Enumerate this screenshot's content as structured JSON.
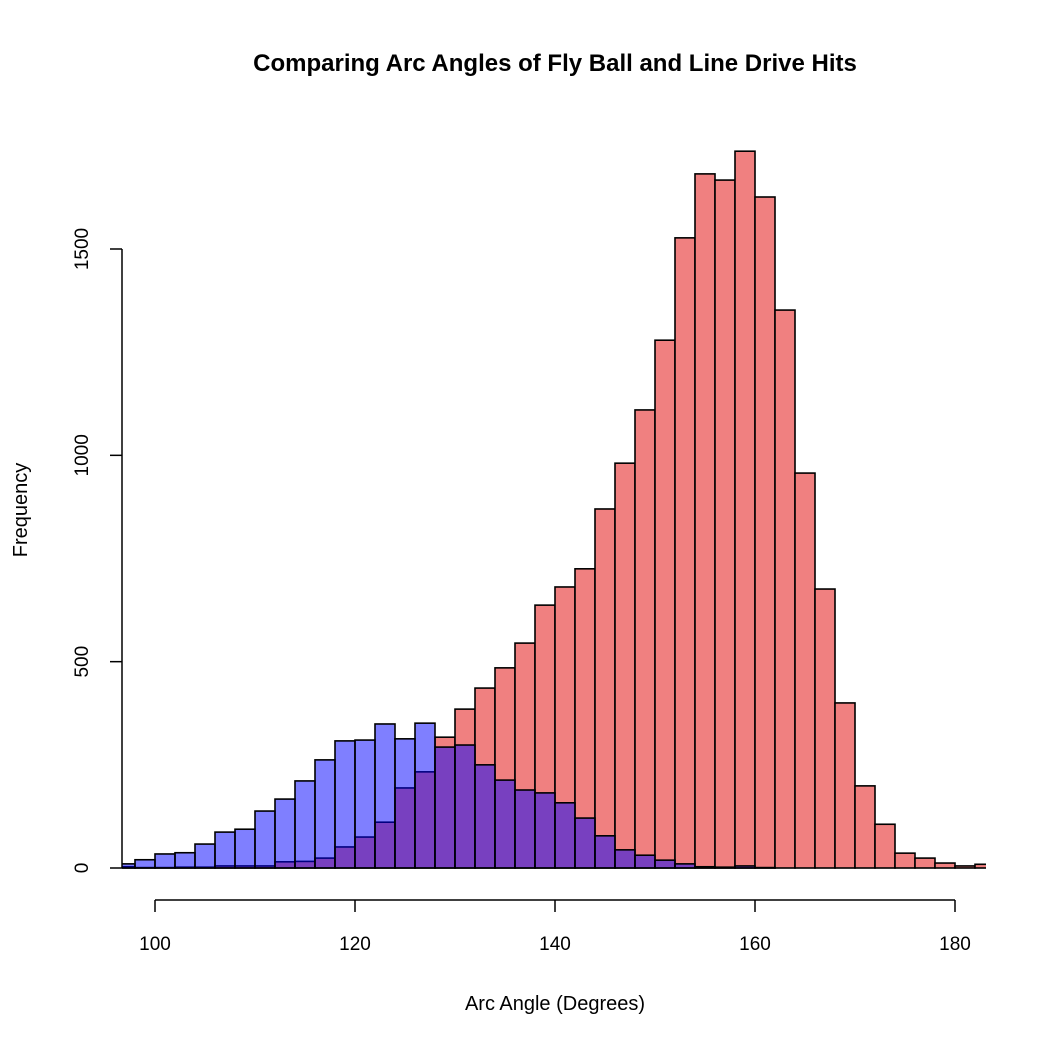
{
  "chart_data": {
    "type": "bar",
    "subtype": "overlaid-histogram",
    "title": "Comparing Arc Angles of Fly Ball and Line Drive Hits",
    "xlabel": "Arc Angle (Degrees)",
    "ylabel": "Frequency",
    "xlim": [
      96.7,
      183.1
    ],
    "ylim": [
      0,
      1750
    ],
    "xticks": [
      100,
      120,
      140,
      160,
      180
    ],
    "yticks": [
      0,
      500,
      1000,
      1500
    ],
    "bin_width": 2,
    "bin_starts": [
      96,
      98,
      100,
      102,
      104,
      106,
      108,
      110,
      112,
      114,
      116,
      118,
      120,
      122,
      124,
      126,
      128,
      130,
      132,
      134,
      136,
      138,
      140,
      142,
      144,
      146,
      148,
      150,
      152,
      154,
      156,
      158,
      160,
      162,
      164,
      166,
      168,
      170,
      172,
      174,
      176,
      178,
      180,
      182
    ],
    "grid": false,
    "series": [
      {
        "color": "#F08080",
        "values": [
          3,
          1,
          1,
          2,
          2,
          5,
          5,
          5,
          15,
          16,
          24,
          51,
          75,
          111,
          194,
          233,
          317,
          385,
          436,
          485,
          545,
          637,
          681,
          725,
          870,
          981,
          1110,
          1279,
          1527,
          1682,
          1667,
          1737,
          1626,
          1352,
          957,
          676,
          400,
          199,
          106,
          36,
          24,
          12,
          5,
          9
        ]
      },
      {
        "color": "#0000FF",
        "opacity": 0.5,
        "values": [
          10,
          20,
          34,
          37,
          58,
          87,
          94,
          138,
          167,
          211,
          262,
          308,
          310,
          349,
          313,
          351,
          293,
          298,
          250,
          213,
          189,
          182,
          158,
          121,
          78,
          44,
          31,
          19,
          10,
          3,
          2,
          5,
          1,
          0,
          0,
          0,
          0,
          0,
          0,
          0,
          0,
          0,
          0,
          0
        ]
      }
    ]
  }
}
